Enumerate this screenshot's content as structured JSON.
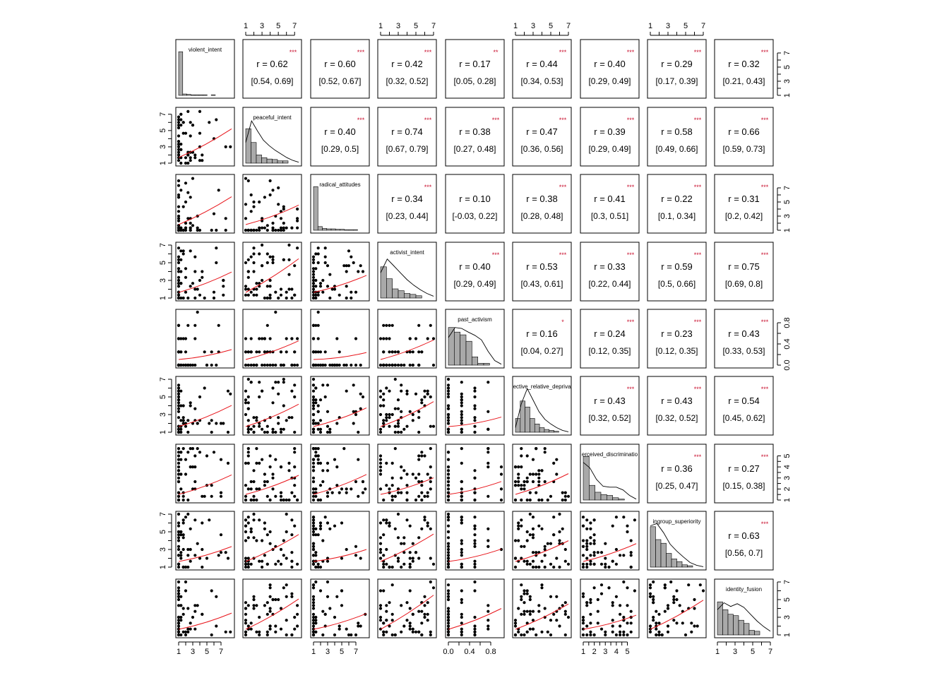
{
  "chart_data": {
    "type": "scatter",
    "title": "",
    "variables": [
      "violent_intent",
      "peaceful_intent",
      "radical_attitudes",
      "activist_intent",
      "past_activism",
      "ective_relative_depriva",
      "erceived_discriminatio",
      "ingroup_superiority",
      "identity_fusion"
    ],
    "diagonal_type": "histogram",
    "lower_type": "scatter",
    "upper_type": "correlation",
    "axis_ranges": [
      [
        1,
        8.5
      ],
      [
        1,
        7.5
      ],
      [
        1,
        8.5
      ],
      [
        1,
        7
      ],
      [
        0,
        1
      ],
      [
        1,
        7
      ],
      [
        1,
        5.8
      ],
      [
        1,
        7
      ],
      [
        1,
        7
      ]
    ],
    "axis_ticks": [
      [
        "1",
        "3",
        "5",
        "7"
      ],
      [
        "1",
        "3",
        "5",
        "7"
      ],
      [
        "1",
        "3",
        "5",
        "7"
      ],
      [
        "1",
        "3",
        "5",
        "7"
      ],
      [
        "0.0",
        "0.4",
        "0.8"
      ],
      [
        "1",
        "3",
        "5",
        "7"
      ],
      [
        "1",
        "2",
        "3",
        "4",
        "5"
      ],
      [
        "1",
        "3",
        "5",
        "7"
      ],
      [
        "1",
        "3",
        "5",
        "7"
      ]
    ],
    "bottom_axis_ticks": [
      [
        "1",
        "3",
        "5",
        "7"
      ],
      [],
      [
        "1",
        "3",
        "5",
        "7"
      ],
      [],
      [
        "0.0",
        "0.4",
        "0.8"
      ],
      [],
      [
        "1",
        "2",
        "3",
        "4",
        "5"
      ],
      [],
      [
        "1",
        "3",
        "5",
        "7"
      ]
    ],
    "correlations": [
      {
        "a": 0,
        "b": 1,
        "r": "r = 0.62",
        "ci": "[0.54, 0.69]",
        "sig": "***"
      },
      {
        "a": 0,
        "b": 2,
        "r": "r = 0.60",
        "ci": "[0.52, 0.67]",
        "sig": "***"
      },
      {
        "a": 0,
        "b": 3,
        "r": "r = 0.42",
        "ci": "[0.32, 0.52]",
        "sig": "***"
      },
      {
        "a": 0,
        "b": 4,
        "r": "r = 0.17",
        "ci": "[0.05, 0.28]",
        "sig": "**"
      },
      {
        "a": 0,
        "b": 5,
        "r": "r = 0.44",
        "ci": "[0.34, 0.53]",
        "sig": "***"
      },
      {
        "a": 0,
        "b": 6,
        "r": "r = 0.40",
        "ci": "[0.29, 0.49]",
        "sig": "***"
      },
      {
        "a": 0,
        "b": 7,
        "r": "r = 0.29",
        "ci": "[0.17, 0.39]",
        "sig": "***"
      },
      {
        "a": 0,
        "b": 8,
        "r": "r = 0.32",
        "ci": "[0.21, 0.43]",
        "sig": "***"
      },
      {
        "a": 1,
        "b": 2,
        "r": "r = 0.40",
        "ci": "[0.29, 0.5]",
        "sig": "***"
      },
      {
        "a": 1,
        "b": 3,
        "r": "r = 0.74",
        "ci": "[0.67, 0.79]",
        "sig": "***"
      },
      {
        "a": 1,
        "b": 4,
        "r": "r = 0.38",
        "ci": "[0.27, 0.48]",
        "sig": "***"
      },
      {
        "a": 1,
        "b": 5,
        "r": "r = 0.47",
        "ci": "[0.36, 0.56]",
        "sig": "***"
      },
      {
        "a": 1,
        "b": 6,
        "r": "r = 0.39",
        "ci": "[0.29, 0.49]",
        "sig": "***"
      },
      {
        "a": 1,
        "b": 7,
        "r": "r = 0.58",
        "ci": "[0.49, 0.66]",
        "sig": "***"
      },
      {
        "a": 1,
        "b": 8,
        "r": "r = 0.66",
        "ci": "[0.59, 0.73]",
        "sig": "***"
      },
      {
        "a": 2,
        "b": 3,
        "r": "r = 0.34",
        "ci": "[0.23, 0.44]",
        "sig": "***"
      },
      {
        "a": 2,
        "b": 4,
        "r": "r = 0.10",
        "ci": "[-0.03, 0.22]",
        "sig": ""
      },
      {
        "a": 2,
        "b": 5,
        "r": "r = 0.38",
        "ci": "[0.28, 0.48]",
        "sig": "***"
      },
      {
        "a": 2,
        "b": 6,
        "r": "r = 0.41",
        "ci": "[0.3, 0.51]",
        "sig": "***"
      },
      {
        "a": 2,
        "b": 7,
        "r": "r = 0.22",
        "ci": "[0.1, 0.34]",
        "sig": "***"
      },
      {
        "a": 2,
        "b": 8,
        "r": "r = 0.31",
        "ci": "[0.2, 0.42]",
        "sig": "***"
      },
      {
        "a": 3,
        "b": 4,
        "r": "r = 0.40",
        "ci": "[0.29, 0.49]",
        "sig": "***"
      },
      {
        "a": 3,
        "b": 5,
        "r": "r = 0.53",
        "ci": "[0.43, 0.61]",
        "sig": "***"
      },
      {
        "a": 3,
        "b": 6,
        "r": "r = 0.33",
        "ci": "[0.22, 0.44]",
        "sig": "***"
      },
      {
        "a": 3,
        "b": 7,
        "r": "r = 0.59",
        "ci": "[0.5, 0.66]",
        "sig": "***"
      },
      {
        "a": 3,
        "b": 8,
        "r": "r = 0.75",
        "ci": "[0.69, 0.8]",
        "sig": "***"
      },
      {
        "a": 4,
        "b": 5,
        "r": "r = 0.16",
        "ci": "[0.04, 0.27]",
        "sig": "*"
      },
      {
        "a": 4,
        "b": 6,
        "r": "r = 0.24",
        "ci": "[0.12, 0.35]",
        "sig": "***"
      },
      {
        "a": 4,
        "b": 7,
        "r": "r = 0.23",
        "ci": "[0.12, 0.35]",
        "sig": "***"
      },
      {
        "a": 4,
        "b": 8,
        "r": "r = 0.43",
        "ci": "[0.33, 0.53]",
        "sig": "***"
      },
      {
        "a": 5,
        "b": 6,
        "r": "r = 0.43",
        "ci": "[0.32, 0.52]",
        "sig": "***"
      },
      {
        "a": 5,
        "b": 7,
        "r": "r = 0.43",
        "ci": "[0.32, 0.52]",
        "sig": "***"
      },
      {
        "a": 5,
        "b": 8,
        "r": "r = 0.54",
        "ci": "[0.45, 0.62]",
        "sig": "***"
      },
      {
        "a": 6,
        "b": 7,
        "r": "r = 0.36",
        "ci": "[0.25, 0.47]",
        "sig": "***"
      },
      {
        "a": 6,
        "b": 8,
        "r": "r = 0.27",
        "ci": "[0.15, 0.38]",
        "sig": "***"
      },
      {
        "a": 7,
        "b": 8,
        "r": "r = 0.63",
        "ci": "[0.56, 0.7]",
        "sig": "***"
      }
    ],
    "histograms": [
      {
        "var": "violent_intent",
        "counts": [
          0.95,
          0.03,
          0.02,
          0.01,
          0.01,
          0.01,
          0.01,
          0.0,
          0.01,
          0.0,
          0.0
        ],
        "density": []
      },
      {
        "var": "peaceful_intent",
        "counts": [
          0.75,
          0.45,
          0.18,
          0.12,
          0.09,
          0.08,
          0.05,
          0.05
        ],
        "density": [
          0.45,
          0.92,
          0.7,
          0.5,
          0.38,
          0.28,
          0.2,
          0.12,
          0.06,
          0.02
        ]
      },
      {
        "var": "radical_attitudes",
        "counts": [
          0.95,
          0.08,
          0.04,
          0.03,
          0.03,
          0.02,
          0.02,
          0.01,
          0.01,
          0.01
        ],
        "density": []
      },
      {
        "var": "activist_intent",
        "counts": [
          0.68,
          0.42,
          0.2,
          0.16,
          0.1,
          0.08,
          0.05
        ],
        "density": [
          0.55,
          0.85,
          0.7,
          0.55,
          0.4,
          0.28,
          0.18,
          0.1,
          0.04
        ]
      },
      {
        "var": "past_activism",
        "counts": [
          0.82,
          0.72,
          0.66,
          0.52,
          0.18,
          0.04,
          0.04
        ],
        "density": [
          0.6,
          0.82,
          0.8,
          0.72,
          0.65,
          0.55,
          0.3,
          0.1,
          0.02
        ]
      },
      {
        "var": "ective_relative_depriva",
        "counts": [
          0.3,
          0.68,
          0.55,
          0.3,
          0.18,
          0.1,
          0.06,
          0.04,
          0.02
        ],
        "density": [
          0.1,
          0.62,
          0.95,
          0.7,
          0.45,
          0.28,
          0.18,
          0.1,
          0.04,
          0.01
        ]
      },
      {
        "var": "erceived_discriminatio",
        "counts": [
          0.95,
          0.32,
          0.17,
          0.12,
          0.1,
          0.05,
          0.02
        ],
        "density": [
          0.82,
          0.7,
          0.45,
          0.3,
          0.28,
          0.28,
          0.22,
          0.1,
          0.02
        ]
      },
      {
        "var": "ingroup_superiority",
        "counts": [
          0.88,
          0.6,
          0.52,
          0.3,
          0.18,
          0.12,
          0.05,
          0.03
        ],
        "density": [
          0.9,
          0.95,
          0.75,
          0.5,
          0.35,
          0.22,
          0.1,
          0.04,
          0.01
        ]
      },
      {
        "var": "identity_fusion",
        "counts": [
          0.72,
          0.55,
          0.45,
          0.42,
          0.32,
          0.25,
          0.1,
          0.08
        ],
        "density": [
          0.55,
          0.7,
          0.62,
          0.68,
          0.6,
          0.45,
          0.3,
          0.18,
          0.08
        ]
      }
    ],
    "scatter_note": "lower panels: scatter of row var vs column var with red loess fit",
    "point_color": "#000000",
    "fit_color": "#e8151b",
    "sig_color": "#c8102e",
    "hist_fill": "#a9a9a9",
    "grid": false,
    "legend": "none"
  }
}
